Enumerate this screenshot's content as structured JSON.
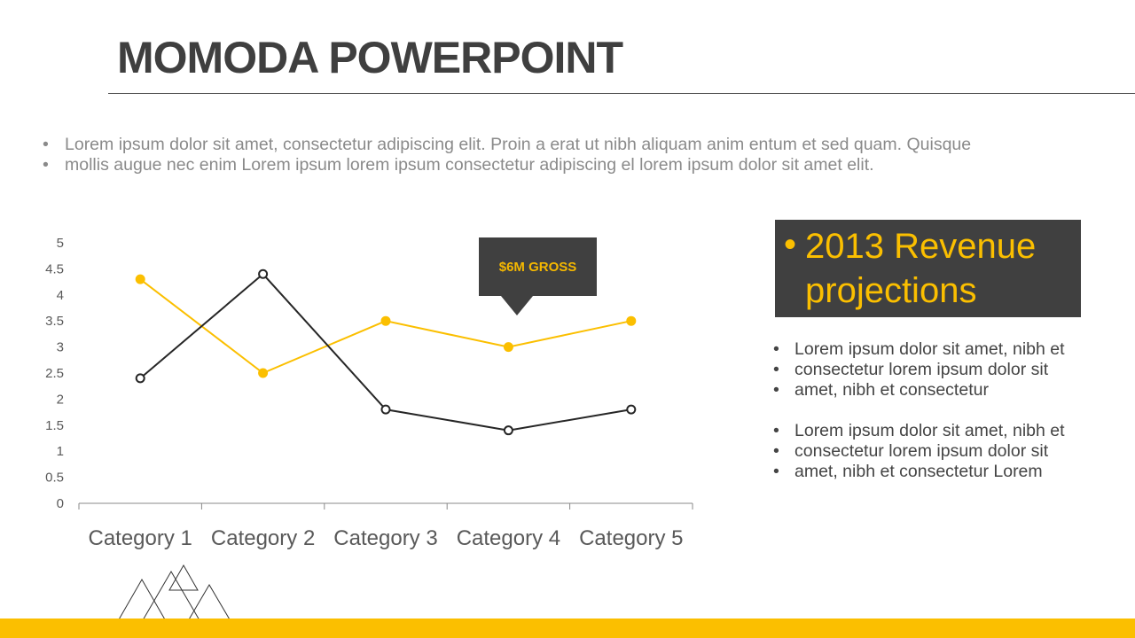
{
  "title": "MOMODA POWERPOINT",
  "intro": [
    "Lorem ipsum dolor sit amet, consectetur adipiscing elit. Proin a erat ut nibh aliquam anim entum et sed quam. Quisque",
    "mollis augue nec enim Lorem ipsum lorem ipsum consectetur adipiscing el lorem ipsum dolor sit amet elit."
  ],
  "callout": "$6M GROSS",
  "revenue_box": {
    "bullet": "•",
    "text": "2013 Revenue projections"
  },
  "side_bullets": [
    [
      "Lorem ipsum dolor sit amet, nibh et",
      "consectetur lorem ipsum dolor sit",
      "amet, nibh et consectetur"
    ],
    [
      "Lorem ipsum dolor sit amet, nibh et",
      "consectetur lorem ipsum dolor sit",
      "amet, nibh et consectetur Lorem"
    ]
  ],
  "colors": {
    "accent": "#fbbf00",
    "dark": "#262626",
    "box": "#404040"
  },
  "chart_data": {
    "type": "line",
    "categories": [
      "Category 1",
      "Category 2",
      "Category 3",
      "Category 4",
      "Category 5"
    ],
    "series": [
      {
        "color": "#fbbf00",
        "marker": "filled-circle",
        "values": [
          4.3,
          2.5,
          3.5,
          3.0,
          3.5
        ]
      },
      {
        "color": "#262626",
        "marker": "hollow-circle",
        "values": [
          2.4,
          4.4,
          1.8,
          1.4,
          1.8
        ]
      }
    ],
    "ylim": [
      0,
      5
    ],
    "yticks": [
      "0",
      "0.5",
      "1",
      "1.5",
      "2",
      "2.5",
      "3",
      "3.5",
      "4",
      "4.5",
      "5"
    ],
    "grid": false
  }
}
